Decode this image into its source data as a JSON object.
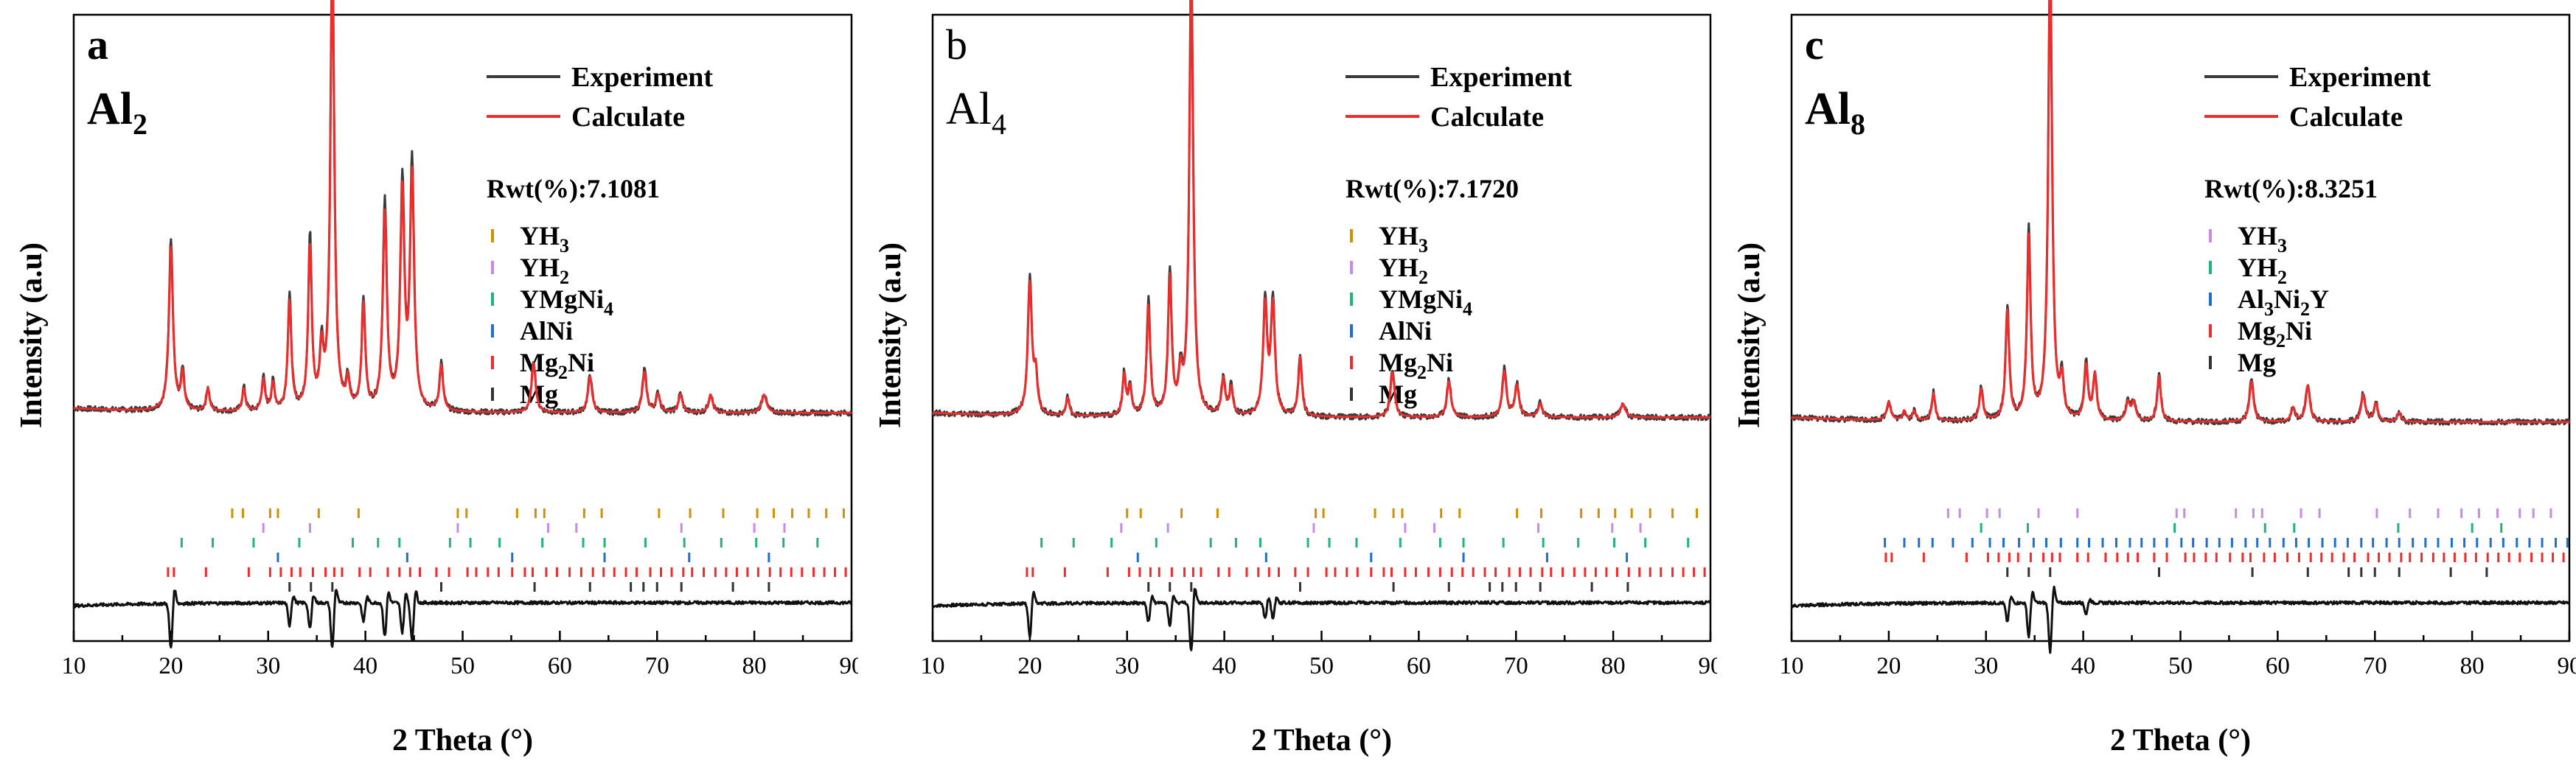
{
  "chart_data": [
    {
      "type": "line",
      "panel": "a",
      "sample": "Al",
      "sample_sub": "2",
      "sample_bold": true,
      "xlabel": "2 Theta (°)",
      "ylabel": "Intensity (a.u)",
      "xlim": [
        10,
        90
      ],
      "xticks": [
        "10",
        "20",
        "30",
        "40",
        "50",
        "60",
        "70",
        "80",
        "90"
      ],
      "legend": {
        "experiment": "Experiment",
        "calculate": "Calculate"
      },
      "rwt": "Rwt(%):7.1081",
      "series_colors": {
        "experiment": "#3a3a3a",
        "calculate": "#ee2c2c",
        "difference": "#111111"
      },
      "background": 0.17,
      "peaks": [
        [
          20.0,
          0.36,
          0.25
        ],
        [
          21.2,
          0.08,
          0.2
        ],
        [
          23.8,
          0.05,
          0.2
        ],
        [
          27.5,
          0.05,
          0.2
        ],
        [
          29.5,
          0.07,
          0.2
        ],
        [
          30.5,
          0.06,
          0.2
        ],
        [
          32.2,
          0.24,
          0.22
        ],
        [
          34.3,
          0.36,
          0.22
        ],
        [
          35.5,
          0.12,
          0.22
        ],
        [
          36.6,
          0.98,
          0.24
        ],
        [
          38.2,
          0.06,
          0.2
        ],
        [
          39.8,
          0.23,
          0.22
        ],
        [
          42.0,
          0.43,
          0.25
        ],
        [
          43.8,
          0.47,
          0.25
        ],
        [
          44.8,
          0.51,
          0.25
        ],
        [
          47.8,
          0.1,
          0.22
        ],
        [
          57.3,
          0.11,
          0.25
        ],
        [
          63.1,
          0.08,
          0.25
        ],
        [
          68.7,
          0.09,
          0.25
        ],
        [
          70.1,
          0.04,
          0.25
        ],
        [
          72.4,
          0.04,
          0.25
        ],
        [
          75.5,
          0.04,
          0.25
        ],
        [
          81.0,
          0.04,
          0.3
        ]
      ],
      "phases": [
        {
          "name": "YH",
          "sub": "3",
          "color": "#d38f00",
          "positions": [
            26.3,
            27.4,
            30.2,
            31.0,
            35.2,
            39.3,
            49.5,
            50.4,
            55.6,
            57.5,
            58.4,
            62.5,
            64.3,
            70.2,
            73.4,
            76.8,
            80.3,
            82.0,
            83.9,
            85.6,
            87.4,
            89.2
          ]
        },
        {
          "name": "YH",
          "sub": "2",
          "color": "#c78ae6",
          "positions": [
            29.5,
            34.3,
            49.5,
            58.8,
            61.7,
            72.5,
            80.0,
            83.1
          ]
        },
        {
          "name": "YMgNi",
          "sub": "4",
          "color": "#20b37a",
          "positions": [
            21.1,
            24.3,
            28.5,
            33.2,
            38.7,
            41.3,
            43.5,
            48.7,
            50.8,
            53.8,
            58.2,
            62.4,
            64.6,
            68.8,
            72.8,
            76.6,
            80.2,
            83.0,
            86.5
          ]
        },
        {
          "name": "AlNi",
          "sub": "",
          "color": "#1f6fd1",
          "positions": [
            31.0,
            44.3,
            55.1,
            64.6,
            73.3,
            81.5
          ]
        },
        {
          "name": "Mg",
          "sub": "2Ni",
          "sub_first": true,
          "color": "#ee2c2c",
          "positions": [
            19.7,
            20.3,
            23.6,
            28.0,
            30.2,
            31.3,
            32.4,
            33.3,
            34.6,
            35.9,
            36.8,
            37.6,
            39.4,
            40.5,
            42.3,
            43.5,
            44.6,
            45.6,
            47.3,
            48.6,
            50.5,
            51.4,
            52.6,
            53.7,
            55.1,
            56.4,
            57.2,
            58.6,
            59.7,
            61.0,
            62.2,
            63.4,
            64.5,
            65.6,
            66.8,
            67.9,
            69.3,
            70.4,
            71.5,
            72.7,
            73.6,
            74.8,
            76.0,
            77.1,
            78.2,
            79.3,
            80.4,
            81.6,
            82.7,
            83.8,
            84.9,
            86.1,
            87.2,
            88.3,
            89.4
          ]
        },
        {
          "name": "Mg",
          "sub": "",
          "color": "#333333",
          "positions": [
            32.2,
            34.4,
            36.6,
            47.8,
            57.4,
            63.1,
            67.3,
            68.6,
            70.0,
            72.5,
            77.8,
            81.5
          ]
        }
      ],
      "difference_dips": [
        [
          20.0,
          -0.12
        ],
        [
          32.2,
          -0.06
        ],
        [
          34.3,
          -0.07
        ],
        [
          36.6,
          -0.12
        ],
        [
          39.8,
          -0.05
        ],
        [
          42.0,
          -0.09
        ],
        [
          43.8,
          -0.08
        ],
        [
          44.8,
          -0.1
        ]
      ]
    },
    {
      "type": "line",
      "panel": "b",
      "sample": "Al",
      "sample_sub": "4",
      "sample_bold": false,
      "xlabel": "2 Theta (°)",
      "ylabel": "Intensity (a.u)",
      "xlim": [
        10,
        90
      ],
      "xticks": [
        "10",
        "20",
        "30",
        "40",
        "50",
        "60",
        "70",
        "80",
        "90"
      ],
      "legend": {
        "experiment": "Experiment",
        "calculate": "Calculate"
      },
      "rwt": "Rwt(%):7.1720",
      "series_colors": {
        "experiment": "#3a3a3a",
        "calculate": "#ee2c2c",
        "difference": "#111111"
      },
      "background": 0.16,
      "peaks": [
        [
          20.0,
          0.29,
          0.25
        ],
        [
          20.6,
          0.08,
          0.2
        ],
        [
          23.9,
          0.04,
          0.2
        ],
        [
          29.7,
          0.09,
          0.2
        ],
        [
          30.3,
          0.06,
          0.2
        ],
        [
          32.2,
          0.24,
          0.22
        ],
        [
          34.4,
          0.3,
          0.22
        ],
        [
          35.5,
          0.08,
          0.22
        ],
        [
          36.6,
          0.95,
          0.24
        ],
        [
          39.9,
          0.08,
          0.22
        ],
        [
          40.7,
          0.06,
          0.22
        ],
        [
          44.2,
          0.24,
          0.25
        ],
        [
          45.0,
          0.24,
          0.25
        ],
        [
          47.8,
          0.13,
          0.22
        ],
        [
          57.3,
          0.1,
          0.25
        ],
        [
          63.1,
          0.08,
          0.25
        ],
        [
          68.8,
          0.1,
          0.25
        ],
        [
          70.1,
          0.07,
          0.25
        ],
        [
          72.5,
          0.03,
          0.25
        ],
        [
          81.0,
          0.03,
          0.3
        ]
      ],
      "phases": [
        {
          "name": "YH",
          "sub": "3",
          "color": "#d38f00",
          "positions": [
            30.0,
            31.4,
            35.6,
            39.3,
            49.4,
            50.2,
            55.5,
            57.4,
            58.3,
            62.3,
            64.2,
            70.1,
            72.6,
            76.7,
            78.5,
            80.2,
            81.9,
            83.8,
            86.1,
            88.6
          ]
        },
        {
          "name": "YH",
          "sub": "2",
          "color": "#c78ae6",
          "positions": [
            29.4,
            34.2,
            49.2,
            58.6,
            61.6,
            72.3,
            79.9,
            82.8
          ]
        },
        {
          "name": "YMgNi",
          "sub": "4",
          "color": "#20b37a",
          "positions": [
            21.2,
            24.5,
            28.4,
            33.0,
            38.6,
            41.2,
            43.7,
            48.6,
            50.8,
            53.6,
            58.1,
            62.2,
            64.6,
            68.7,
            72.8,
            76.4,
            80.1,
            83.3,
            87.7
          ]
        },
        {
          "name": "AlNi",
          "sub": "",
          "color": "#1f6fd1",
          "positions": [
            31.1,
            44.3,
            55.1,
            64.6,
            73.2,
            81.4
          ]
        },
        {
          "name": "Mg",
          "sub": "2Ni",
          "sub_first": true,
          "color": "#ee2c2c",
          "positions": [
            19.7,
            20.3,
            23.6,
            28.0,
            30.2,
            31.3,
            32.4,
            33.3,
            34.6,
            35.9,
            36.8,
            37.6,
            39.4,
            40.5,
            42.3,
            43.5,
            44.6,
            45.6,
            47.3,
            48.6,
            50.5,
            51.4,
            52.6,
            53.7,
            55.1,
            56.4,
            57.2,
            58.6,
            59.7,
            61.0,
            62.2,
            63.4,
            64.5,
            65.6,
            66.8,
            67.9,
            69.3,
            70.4,
            71.5,
            72.7,
            73.6,
            74.8,
            76.0,
            77.1,
            78.2,
            79.3,
            80.4,
            81.6,
            82.7,
            83.8,
            84.9,
            86.1,
            87.2,
            88.3,
            89.4
          ]
        },
        {
          "name": "Mg",
          "sub": "",
          "color": "#333333",
          "positions": [
            32.2,
            34.4,
            36.6,
            47.8,
            57.4,
            63.1,
            67.3,
            68.6,
            70.0,
            72.5,
            77.8,
            81.5
          ]
        }
      ],
      "difference_dips": [
        [
          20.0,
          -0.09
        ],
        [
          32.2,
          -0.05
        ],
        [
          34.4,
          -0.06
        ],
        [
          36.6,
          -0.13
        ],
        [
          44.2,
          -0.04
        ],
        [
          45.0,
          -0.04
        ]
      ]
    },
    {
      "type": "line",
      "panel": "c",
      "sample": "Al",
      "sample_sub": "8",
      "sample_bold": true,
      "xlabel": "2 Theta (°)",
      "ylabel": "Intensity (a.u)",
      "xlim": [
        10,
        90
      ],
      "xticks": [
        "10",
        "20",
        "30",
        "40",
        "50",
        "60",
        "70",
        "80",
        "90"
      ],
      "legend": {
        "experiment": "Experiment",
        "calculate": "Calculate"
      },
      "rwt": "Rwt(%):8.3251",
      "series_colors": {
        "experiment": "#3a3a3a",
        "calculate": "#ee2c2c",
        "difference": "#111111"
      },
      "background": 0.15,
      "peaks": [
        [
          20.0,
          0.04,
          0.25
        ],
        [
          21.6,
          0.02,
          0.2
        ],
        [
          22.6,
          0.02,
          0.2
        ],
        [
          24.6,
          0.06,
          0.2
        ],
        [
          29.5,
          0.07,
          0.22
        ],
        [
          32.2,
          0.24,
          0.22
        ],
        [
          34.4,
          0.4,
          0.22
        ],
        [
          36.6,
          0.98,
          0.24
        ],
        [
          37.8,
          0.08,
          0.22
        ],
        [
          40.3,
          0.12,
          0.22
        ],
        [
          41.2,
          0.1,
          0.22
        ],
        [
          44.6,
          0.04,
          0.25
        ],
        [
          45.2,
          0.04,
          0.25
        ],
        [
          47.8,
          0.1,
          0.22
        ],
        [
          57.3,
          0.09,
          0.25
        ],
        [
          61.6,
          0.03,
          0.25
        ],
        [
          63.1,
          0.08,
          0.25
        ],
        [
          68.8,
          0.06,
          0.25
        ],
        [
          70.1,
          0.04,
          0.25
        ],
        [
          72.5,
          0.02,
          0.25
        ]
      ],
      "phases": [
        {
          "name": "YH",
          "sub": "3",
          "color": "#c78ae6",
          "positions": [
            26.1,
            27.3,
            30.1,
            31.4,
            35.4,
            39.4,
            49.6,
            50.4,
            55.7,
            57.5,
            58.4,
            62.4,
            64.3,
            70.2,
            73.6,
            76.5,
            78.9,
            80.7,
            82.6,
            84.9,
            86.3,
            88.1
          ]
        },
        {
          "name": "YH",
          "sub": "2",
          "color": "#20b37a",
          "positions": [
            29.5,
            34.3,
            49.4,
            58.7,
            61.7,
            72.4,
            80.0,
            83.0
          ]
        },
        {
          "name": "Al",
          "sub": "3",
          "mid": "Ni",
          "sub2": "2",
          "tail": "Y",
          "color": "#1f6fd1",
          "positions": [
            19.6,
            21.6,
            23.1,
            24.5,
            26.6,
            28.6,
            30.4,
            31.8,
            33.4,
            34.9,
            36.2,
            37.7,
            39.4,
            40.6,
            42.0,
            43.4,
            44.8,
            46.0,
            47.3,
            48.6,
            50.1,
            51.3,
            52.7,
            54.0,
            55.3,
            56.7,
            57.9,
            59.2,
            60.6,
            61.9,
            63.2,
            64.6,
            65.9,
            67.2,
            68.6,
            69.8,
            71.2,
            72.5,
            73.9,
            75.2,
            76.5,
            77.9,
            79.2,
            80.5,
            81.9,
            83.2,
            84.6,
            85.9,
            87.2,
            88.6,
            89.8
          ]
        },
        {
          "name": "Mg",
          "sub": "2Ni",
          "sub_first": true,
          "color": "#ee2c2c",
          "positions": [
            19.7,
            20.3,
            23.6,
            28.0,
            30.2,
            31.3,
            32.4,
            33.3,
            34.6,
            35.9,
            36.8,
            37.6,
            39.4,
            40.5,
            42.3,
            43.5,
            44.6,
            45.6,
            47.3,
            48.6,
            50.5,
            51.4,
            52.6,
            53.7,
            55.1,
            56.4,
            57.2,
            58.6,
            59.7,
            61.0,
            62.2,
            63.4,
            64.5,
            65.6,
            66.8,
            67.9,
            69.3,
            70.4,
            71.5,
            72.7,
            73.6,
            74.8,
            76.0,
            77.1,
            78.2,
            79.3,
            80.4,
            81.6,
            82.7,
            83.8,
            84.9,
            86.1,
            87.2,
            88.3,
            89.4
          ]
        },
        {
          "name": "Mg",
          "sub": "",
          "color": "#333333",
          "positions": [
            32.2,
            34.4,
            36.6,
            47.8,
            57.4,
            63.1,
            67.3,
            68.6,
            70.0,
            72.5,
            77.8,
            81.5
          ]
        }
      ],
      "difference_dips": [
        [
          32.2,
          -0.05
        ],
        [
          34.4,
          -0.09
        ],
        [
          36.6,
          -0.13
        ],
        [
          40.3,
          -0.03
        ]
      ]
    }
  ]
}
